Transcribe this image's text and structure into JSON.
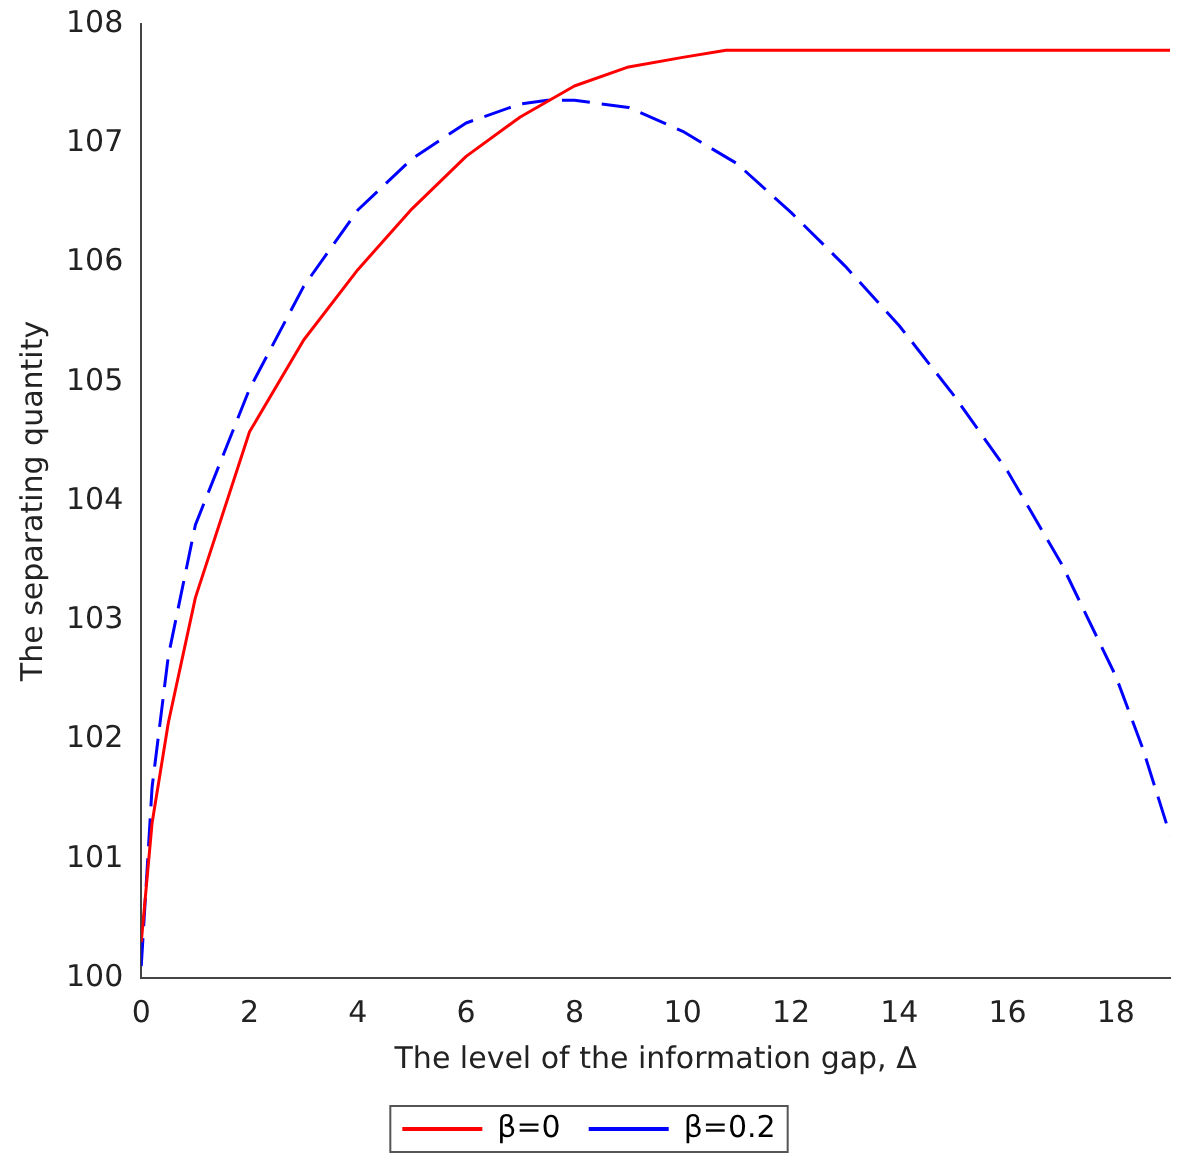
{
  "chart_data": {
    "type": "line",
    "xlabel": "The level of the information gap, Δ",
    "ylabel": "The separating quantity",
    "xlim": [
      0,
      19
    ],
    "xticks": [
      0,
      2,
      4,
      6,
      8,
      10,
      12,
      14,
      16,
      18
    ],
    "ylim": [
      100,
      108
    ],
    "yticks": [
      100,
      101,
      102,
      103,
      104,
      105,
      106,
      107,
      108
    ],
    "grid": false,
    "legend": "bottom",
    "marker": "none",
    "series": [
      {
        "name": "β=0",
        "color": "#ff0000",
        "line_style": "solid",
        "x": [
          0,
          0.2,
          0.5,
          1,
          2,
          3,
          4,
          5,
          6,
          7,
          8,
          9,
          10,
          10.8,
          12,
          14,
          16,
          18,
          19
        ],
        "values": [
          100.3,
          101.3,
          102.14,
          103.19,
          104.58,
          105.35,
          105.94,
          106.45,
          106.89,
          107.22,
          107.48,
          107.64,
          107.72,
          107.78,
          107.78,
          107.78,
          107.78,
          107.78,
          107.78
        ]
      },
      {
        "name": "β=0.2",
        "color": "#0000ff",
        "line_style": "dashed",
        "x": [
          0,
          0.2,
          0.5,
          1,
          2,
          3,
          4,
          5,
          6,
          7,
          7.5,
          8,
          9,
          10,
          11,
          12,
          13,
          14,
          15,
          16,
          17,
          18,
          18.5,
          19
        ],
        "values": [
          100.1,
          101.6,
          102.7,
          103.8,
          104.94,
          105.8,
          106.44,
          106.87,
          107.17,
          107.33,
          107.36,
          107.36,
          107.3,
          107.1,
          106.83,
          106.42,
          105.97,
          105.47,
          104.89,
          104.25,
          103.47,
          102.53,
          101.92,
          101.2
        ]
      }
    ]
  }
}
